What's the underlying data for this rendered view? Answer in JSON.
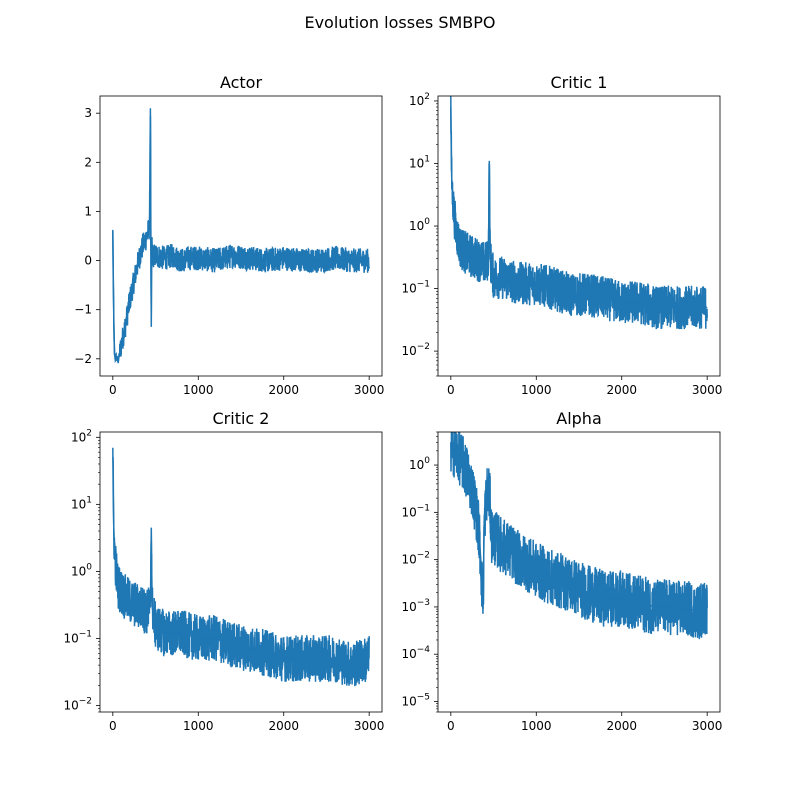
{
  "figure": {
    "suptitle": "Evolution losses SMBPO"
  },
  "chart_data": [
    {
      "type": "line",
      "title": "Actor",
      "xlabel": "",
      "ylabel": "",
      "xlim": [
        -150,
        3150
      ],
      "ylim": [
        -2.35,
        3.35
      ],
      "yscale": "linear",
      "xticks": [
        0,
        1000,
        2000,
        3000
      ],
      "xtick_labels": [
        "0",
        "1000",
        "2000",
        "3000"
      ],
      "yticks": [
        -2,
        -1,
        0,
        1,
        2,
        3
      ],
      "ytick_labels": [
        "−2",
        "−1",
        "0",
        "1",
        "2",
        "3"
      ],
      "line_color": "#1f77b4",
      "series": [
        {
          "x": [
            0,
            5,
            10,
            15,
            20,
            30,
            40,
            60,
            80,
            100,
            150,
            200,
            250,
            300,
            350,
            400,
            430,
            440,
            445,
            450,
            455,
            460,
            470,
            500,
            600,
            700,
            800,
            900,
            1000,
            1200,
            1400,
            1600,
            1800,
            2000,
            2200,
            2400,
            2600,
            2800,
            3000
          ],
          "y": [
            0.6,
            -0.3,
            -1.0,
            -1.6,
            -1.9,
            -2.0,
            -1.95,
            -2.05,
            -1.9,
            -1.7,
            -1.3,
            -0.8,
            -0.4,
            0.0,
            0.3,
            0.5,
            0.7,
            3.1,
            0.5,
            -1.35,
            0.4,
            0.2,
            0.1,
            0.1,
            0.05,
            0.1,
            0.0,
            0.05,
            0.05,
            0.0,
            0.1,
            0.05,
            0.0,
            0.05,
            0.0,
            0.0,
            0.05,
            0.0,
            0.0
          ],
          "band": 0.25
        }
      ]
    },
    {
      "type": "line",
      "title": "Critic 1",
      "xlabel": "",
      "ylabel": "",
      "xlim": [
        -150,
        3150
      ],
      "ylim": [
        0.004,
        120
      ],
      "yscale": "log",
      "xticks": [
        0,
        1000,
        2000,
        3000
      ],
      "xtick_labels": [
        "0",
        "1000",
        "2000",
        "3000"
      ],
      "yticks": [
        0.01,
        0.1,
        1,
        10,
        100
      ],
      "ytick_base": [
        "10",
        "10",
        "10",
        "10",
        "10"
      ],
      "ytick_exp": [
        "−2",
        "−1",
        "0",
        "1",
        "2"
      ],
      "line_color": "#1f77b4",
      "series": [
        {
          "x": [
            0,
            5,
            10,
            20,
            40,
            60,
            100,
            150,
            200,
            300,
            400,
            440,
            450,
            460,
            500,
            600,
            800,
            1000,
            1200,
            1400,
            1600,
            1800,
            2000,
            2200,
            2400,
            2600,
            2800,
            3000
          ],
          "y": [
            80,
            20,
            6,
            3,
            1.5,
            0.9,
            0.5,
            0.4,
            0.35,
            0.3,
            0.25,
            0.3,
            11,
            0.3,
            0.15,
            0.15,
            0.12,
            0.12,
            0.1,
            0.08,
            0.08,
            0.07,
            0.06,
            0.06,
            0.05,
            0.05,
            0.05,
            0.05
          ],
          "band": 0.35
        }
      ]
    },
    {
      "type": "line",
      "title": "Critic 2",
      "xlabel": "",
      "ylabel": "",
      "xlim": [
        -150,
        3150
      ],
      "ylim": [
        0.008,
        120
      ],
      "yscale": "log",
      "xticks": [
        0,
        1000,
        2000,
        3000
      ],
      "xtick_labels": [
        "0",
        "1000",
        "2000",
        "3000"
      ],
      "yticks": [
        0.01,
        0.1,
        1,
        10,
        100
      ],
      "ytick_base": [
        "10",
        "10",
        "10",
        "10",
        "10"
      ],
      "ytick_exp": [
        "−2",
        "−1",
        "0",
        "1",
        "2"
      ],
      "line_color": "#1f77b4",
      "series": [
        {
          "x": [
            0,
            5,
            10,
            20,
            40,
            60,
            100,
            150,
            200,
            300,
            400,
            440,
            450,
            460,
            500,
            600,
            800,
            1000,
            1200,
            1400,
            1600,
            1800,
            2000,
            2200,
            2400,
            2600,
            2800,
            3000
          ],
          "y": [
            70,
            15,
            5,
            2,
            1.0,
            0.6,
            0.5,
            0.4,
            0.35,
            0.3,
            0.25,
            0.3,
            4.5,
            0.3,
            0.15,
            0.12,
            0.12,
            0.1,
            0.1,
            0.08,
            0.07,
            0.06,
            0.05,
            0.05,
            0.05,
            0.05,
            0.04,
            0.05
          ],
          "band": 0.35
        }
      ]
    },
    {
      "type": "line",
      "title": "Alpha",
      "xlabel": "",
      "ylabel": "",
      "xlim": [
        -150,
        3150
      ],
      "ylim": [
        6e-06,
        5
      ],
      "yscale": "log",
      "xticks": [
        0,
        1000,
        2000,
        3000
      ],
      "xtick_labels": [
        "0",
        "1000",
        "2000",
        "3000"
      ],
      "yticks": [
        1e-05,
        0.0001,
        0.001,
        0.01,
        0.1,
        1
      ],
      "ytick_base": [
        "10",
        "10",
        "10",
        "10",
        "10",
        "10"
      ],
      "ytick_exp": [
        "−5",
        "−4",
        "−3",
        "−2",
        "−1",
        "0"
      ],
      "line_color": "#1f77b4",
      "series": [
        {
          "x": [
            0,
            50,
            100,
            150,
            200,
            250,
            300,
            330,
            350,
            360,
            370,
            375,
            380,
            385,
            390,
            400,
            420,
            440,
            460,
            470,
            480,
            500,
            600,
            700,
            800,
            900,
            1000,
            1200,
            1400,
            1600,
            1800,
            2000,
            2200,
            2400,
            2600,
            2700,
            2800,
            2900,
            3000
          ],
          "y": [
            2.5,
            2.0,
            1.5,
            1.0,
            0.6,
            0.3,
            0.1,
            0.04,
            0.01,
            0.004,
            0.002,
            0.0009,
            0.002,
            0.01,
            0.05,
            0.1,
            0.25,
            0.3,
            0.15,
            0.05,
            0.03,
            0.03,
            0.02,
            0.015,
            0.01,
            0.008,
            0.006,
            0.004,
            0.003,
            0.002,
            0.0015,
            0.0015,
            0.0012,
            0.001,
            0.001,
            0.0009,
            0.0009,
            0.0008,
            0.001
          ],
          "band": 0.6
        }
      ]
    }
  ]
}
